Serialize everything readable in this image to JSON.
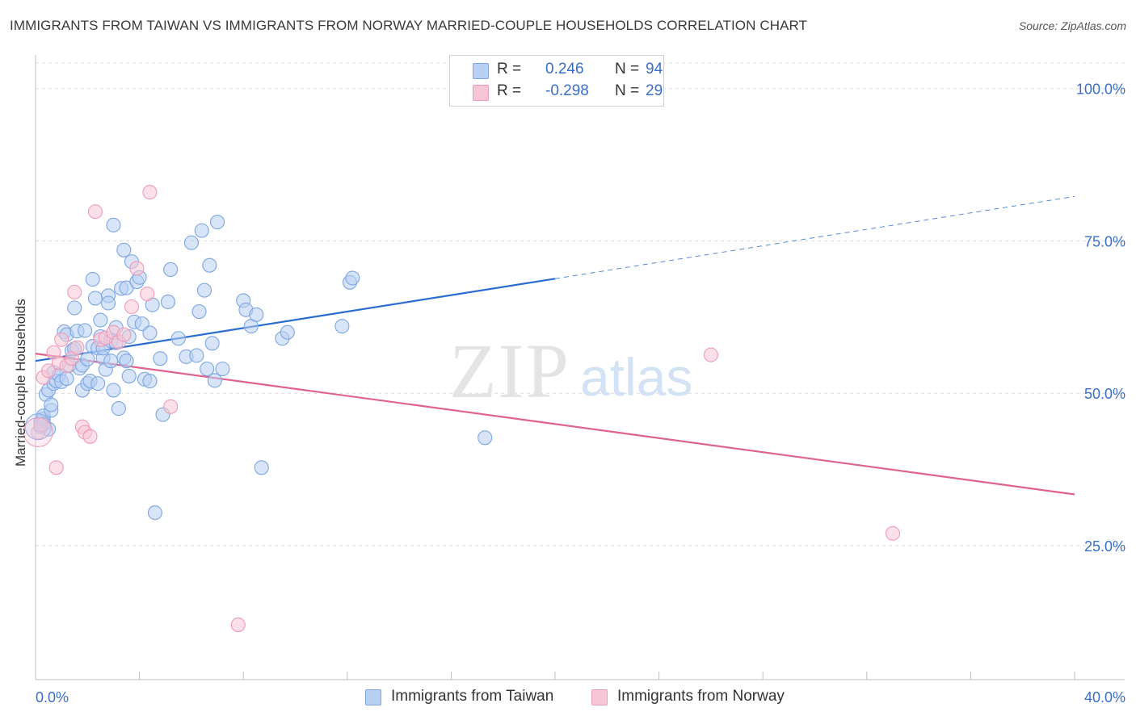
{
  "title": "IMMIGRANTS FROM TAIWAN VS IMMIGRANTS FROM NORWAY MARRIED-COUPLE HOUSEHOLDS CORRELATION CHART",
  "source": "Source: ZipAtlas.com",
  "watermark": {
    "zip": "ZIP",
    "atlas": "atlas"
  },
  "legend": {
    "rows": [
      {
        "r_label": "R =",
        "r_value": "0.246",
        "n_label": "N =",
        "n_value": "94"
      },
      {
        "r_label": "R =",
        "r_value": "-0.298",
        "n_label": "N =",
        "n_value": "29"
      }
    ]
  },
  "colors": {
    "taiwan_fill": "#b8d0f2",
    "taiwan_stroke": "#7da6e2",
    "taiwan_line": "#2a6cd0",
    "norway_fill": "#f7c6d6",
    "norway_stroke": "#ee9bb8",
    "norway_line": "#e0638e",
    "grid": "#dcdcdc",
    "axis_text": "#3a6fc9"
  },
  "chart_data": {
    "type": "scatter",
    "title": "IMMIGRANTS FROM TAIWAN VS IMMIGRANTS FROM NORWAY MARRIED-COUPLE HOUSEHOLDS CORRELATION CHART",
    "xlabel": "",
    "ylabel": "Married-couple Households",
    "xlim": [
      0,
      40
    ],
    "ylim": [
      3,
      105
    ],
    "x_tick_labels": [
      "0.0%",
      "40.0%"
    ],
    "y_ticks": [
      25,
      50,
      75,
      100
    ],
    "y_tick_labels": [
      "25.0%",
      "50.0%",
      "75.0%",
      "100.0%"
    ],
    "grid": true,
    "legend_position": "top-center",
    "series": [
      {
        "name": "Immigrants from Taiwan",
        "r": 0.246,
        "n": 94,
        "trend": {
          "x0": 0,
          "y0": 55.3,
          "x1": 20,
          "y1": 68.8,
          "dashed_to_x": 40,
          "dashed_to_y": 82.3
        },
        "points": [
          [
            0.2,
            44.5
          ],
          [
            0.2,
            45.3
          ],
          [
            0.3,
            45.8
          ],
          [
            0.3,
            46.3
          ],
          [
            0.4,
            49.8
          ],
          [
            0.5,
            50.5
          ],
          [
            0.6,
            47.2
          ],
          [
            0.6,
            48.1
          ],
          [
            0.7,
            51.6
          ],
          [
            0.7,
            53.4
          ],
          [
            0.8,
            52.0
          ],
          [
            0.9,
            53.0
          ],
          [
            1.0,
            51.9
          ],
          [
            1.1,
            60.1
          ],
          [
            1.2,
            59.6
          ],
          [
            1.2,
            52.4
          ],
          [
            1.3,
            54.6
          ],
          [
            1.4,
            57.0
          ],
          [
            1.5,
            57.3
          ],
          [
            1.5,
            64.0
          ],
          [
            1.6,
            60.2
          ],
          [
            1.7,
            54.1
          ],
          [
            1.8,
            54.6
          ],
          [
            1.8,
            50.5
          ],
          [
            1.9,
            60.3
          ],
          [
            2.0,
            51.6
          ],
          [
            2.1,
            52.0
          ],
          [
            2.2,
            57.7
          ],
          [
            2.2,
            68.7
          ],
          [
            2.3,
            65.6
          ],
          [
            2.4,
            57.4
          ],
          [
            2.4,
            51.6
          ],
          [
            2.5,
            62.0
          ],
          [
            2.5,
            59.3
          ],
          [
            2.6,
            55.8
          ],
          [
            2.6,
            57.4
          ],
          [
            2.7,
            53.9
          ],
          [
            2.8,
            66.0
          ],
          [
            2.8,
            64.8
          ],
          [
            2.9,
            58.6
          ],
          [
            2.9,
            55.3
          ],
          [
            3.0,
            50.5
          ],
          [
            3.0,
            77.6
          ],
          [
            3.1,
            60.8
          ],
          [
            3.2,
            47.5
          ],
          [
            3.3,
            67.2
          ],
          [
            3.4,
            73.5
          ],
          [
            3.4,
            55.8
          ],
          [
            3.5,
            55.3
          ],
          [
            3.5,
            67.3
          ],
          [
            3.6,
            52.8
          ],
          [
            3.6,
            59.3
          ],
          [
            3.7,
            71.6
          ],
          [
            3.8,
            61.7
          ],
          [
            3.9,
            68.3
          ],
          [
            4.0,
            69.0
          ],
          [
            4.1,
            61.4
          ],
          [
            4.2,
            52.3
          ],
          [
            4.4,
            59.9
          ],
          [
            4.4,
            52.0
          ],
          [
            4.5,
            64.5
          ],
          [
            4.6,
            30.4
          ],
          [
            4.8,
            55.7
          ],
          [
            4.9,
            46.5
          ],
          [
            5.1,
            65.0
          ],
          [
            5.2,
            70.3
          ],
          [
            5.5,
            59.0
          ],
          [
            5.8,
            56.0
          ],
          [
            6.0,
            74.7
          ],
          [
            6.2,
            56.2
          ],
          [
            6.3,
            63.4
          ],
          [
            6.4,
            76.7
          ],
          [
            6.5,
            66.9
          ],
          [
            6.6,
            54.0
          ],
          [
            6.7,
            71.0
          ],
          [
            6.8,
            58.2
          ],
          [
            6.9,
            52.1
          ],
          [
            7.0,
            78.1
          ],
          [
            7.2,
            54.0
          ],
          [
            8.0,
            65.2
          ],
          [
            8.1,
            63.7
          ],
          [
            8.3,
            61.0
          ],
          [
            8.5,
            62.9
          ],
          [
            8.7,
            37.8
          ],
          [
            9.5,
            59.0
          ],
          [
            9.7,
            60.0
          ],
          [
            11.8,
            61.0
          ],
          [
            12.1,
            68.2
          ],
          [
            12.2,
            68.9
          ],
          [
            17.3,
            42.7
          ],
          [
            0.3,
            44.9
          ],
          [
            0.5,
            44.1
          ],
          [
            2.0,
            55.6
          ],
          [
            3.1,
            58.3
          ]
        ]
      },
      {
        "name": "Immigrants from Norway",
        "r": -0.298,
        "n": 29,
        "trend": {
          "x0": 0,
          "y0": 56.5,
          "x1": 40,
          "y1": 33.4
        },
        "points": [
          [
            0.1,
            43.6
          ],
          [
            0.2,
            44.8
          ],
          [
            0.3,
            52.6
          ],
          [
            0.5,
            53.7
          ],
          [
            0.7,
            56.7
          ],
          [
            0.8,
            37.8
          ],
          [
            0.9,
            55.0
          ],
          [
            1.0,
            58.8
          ],
          [
            1.2,
            54.5
          ],
          [
            1.4,
            55.7
          ],
          [
            1.5,
            66.6
          ],
          [
            1.6,
            57.5
          ],
          [
            1.8,
            44.5
          ],
          [
            1.9,
            43.6
          ],
          [
            2.1,
            42.9
          ],
          [
            2.3,
            79.8
          ],
          [
            2.5,
            58.8
          ],
          [
            2.7,
            59.1
          ],
          [
            3.0,
            60.0
          ],
          [
            3.2,
            58.4
          ],
          [
            3.4,
            59.6
          ],
          [
            3.7,
            64.2
          ],
          [
            3.9,
            70.5
          ],
          [
            4.3,
            66.3
          ],
          [
            4.4,
            83.0
          ],
          [
            5.2,
            47.8
          ],
          [
            7.8,
            12.0
          ],
          [
            26.0,
            56.3
          ],
          [
            33.0,
            27.0
          ]
        ]
      }
    ]
  }
}
